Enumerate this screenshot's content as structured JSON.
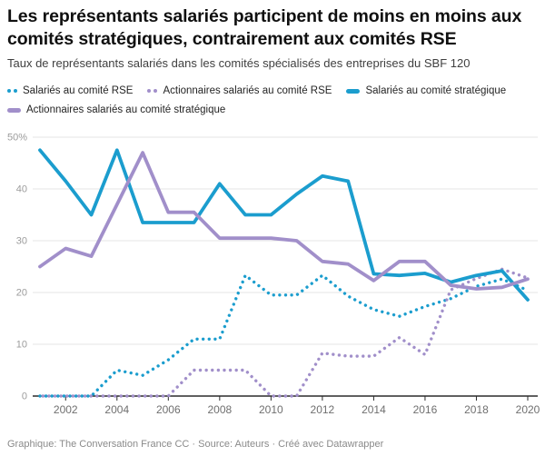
{
  "header": {
    "title": "Les représentants salariés participent de moins en moins aux comités stratégiques, contrairement aux comités RSE",
    "subtitle": "Taux de représentants salariés dans les comités spécialisés des entreprises du SBF 120"
  },
  "colors": {
    "teal": "#1b9dce",
    "purple": "#a18fca",
    "grid": "#e6e6e6",
    "axis": "#2b2b2b",
    "ylabel": "#9c9c9c",
    "xlabel": "#6f6f6f"
  },
  "legend": {
    "items": [
      {
        "id": "salaries-rse",
        "label": "Salariés au comité RSE",
        "style": "dotted",
        "color": "#1b9dce"
      },
      {
        "id": "actionnaires-rse",
        "label": "Actionnaires salariés au comité RSE",
        "style": "dotted",
        "color": "#a18fca"
      },
      {
        "id": "salaries-strategique",
        "label": "Salariés au comité stratégique",
        "style": "solid",
        "color": "#1b9dce"
      },
      {
        "id": "actionnaires-strategique",
        "label": "Actionnaires salariés au comité stratégique",
        "style": "solid",
        "color": "#a18fca"
      }
    ]
  },
  "chart_data": {
    "type": "line",
    "title": "Les représentants salariés participent de moins en moins aux comités stratégiques, contrairement aux comités RSE",
    "subtitle": "Taux de représentants salariés dans les comités spécialisés des entreprises du SBF 120",
    "x": [
      2001,
      2002,
      2003,
      2004,
      2005,
      2006,
      2007,
      2008,
      2009,
      2010,
      2011,
      2012,
      2013,
      2014,
      2015,
      2016,
      2017,
      2018,
      2019,
      2020
    ],
    "series": [
      {
        "id": "salaries-rse",
        "name": "Salariés au comité RSE",
        "color": "#1b9dce",
        "dash": "dotted",
        "values": [
          0,
          0,
          0,
          5,
          4,
          7,
          11,
          11,
          23.3,
          19.5,
          19.5,
          23.3,
          19.3,
          16.7,
          15.4,
          17.3,
          18.8,
          21.2,
          22.6,
          20.4
        ]
      },
      {
        "id": "actionnaires-rse",
        "name": "Actionnaires salariés au comité RSE",
        "color": "#a18fca",
        "dash": "dotted",
        "values": [
          0,
          0,
          0,
          0,
          0,
          0,
          5,
          5,
          5,
          0,
          0,
          8.3,
          7.7,
          7.7,
          11.3,
          8,
          20.5,
          22.7,
          24.5,
          22.8
        ]
      },
      {
        "id": "salaries-strategique",
        "name": "Salariés au comité stratégique",
        "color": "#1b9dce",
        "dash": "solid",
        "values": [
          47.5,
          41.5,
          35,
          47.5,
          33.5,
          33.5,
          33.5,
          41,
          35,
          35,
          39,
          42.5,
          41.5,
          23.6,
          23.3,
          23.7,
          22,
          23.3,
          24.2,
          18.6
        ]
      },
      {
        "id": "actionnaires-strategique",
        "name": "Actionnaires salariés au comité stratégique",
        "color": "#a18fca",
        "dash": "solid",
        "values": [
          25,
          28.5,
          27,
          37,
          47,
          35.5,
          35.5,
          30.5,
          30.5,
          30.5,
          30,
          26,
          25.5,
          22.3,
          26,
          26,
          21.4,
          20.7,
          21,
          22.6
        ]
      }
    ],
    "ylim": [
      0,
      50
    ],
    "yticks": [
      0,
      10,
      20,
      30,
      40,
      50
    ],
    "ytick_labels": [
      "0",
      "10",
      "20",
      "30",
      "40",
      "50%"
    ],
    "xticks": [
      2002,
      2004,
      2006,
      2008,
      2010,
      2012,
      2014,
      2016,
      2018,
      2020
    ],
    "grid": true,
    "legend_position": "top"
  },
  "footer": {
    "text": "Graphique: The Conversation France CC · Source: Auteurs · Créé avec Datawrapper"
  }
}
